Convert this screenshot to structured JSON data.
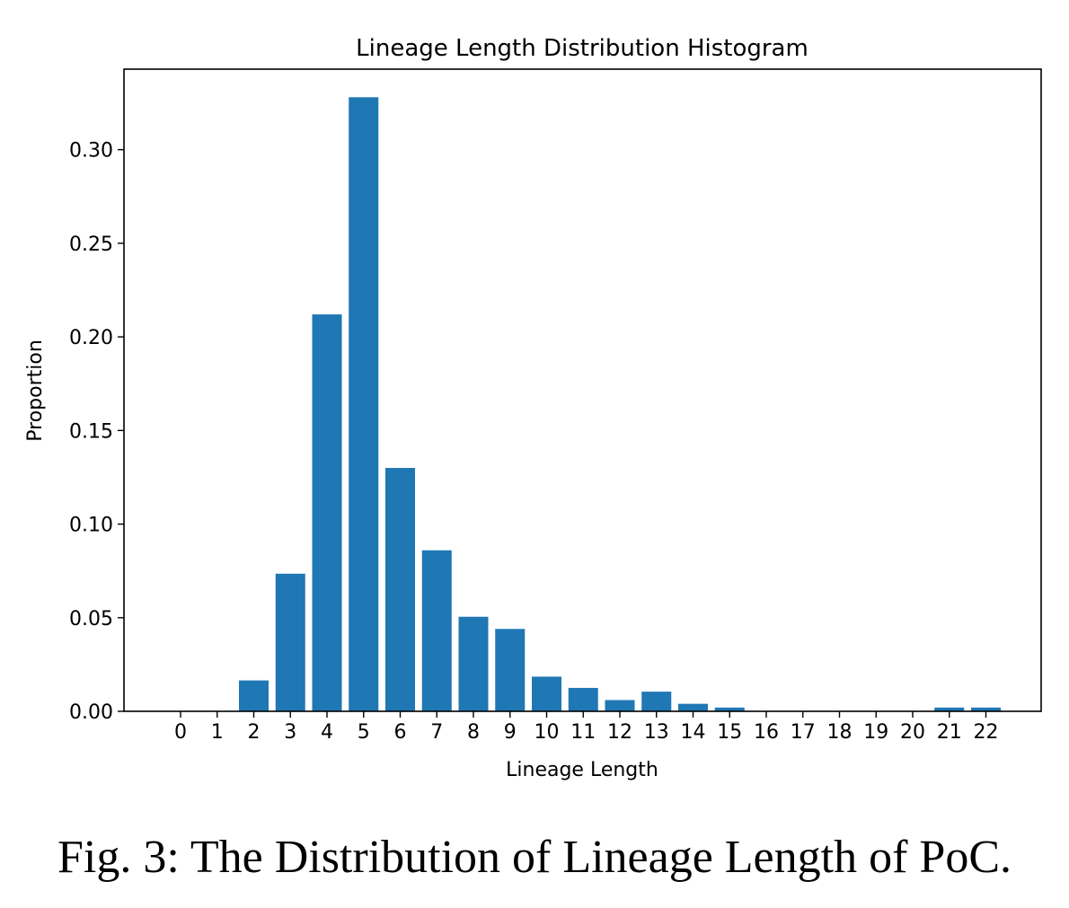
{
  "chart_data": {
    "type": "bar",
    "title": "Lineage Length Distribution Histogram",
    "xlabel": "Lineage Length",
    "ylabel": "Proportion",
    "categories": [
      "0",
      "1",
      "2",
      "3",
      "4",
      "5",
      "6",
      "7",
      "8",
      "9",
      "10",
      "11",
      "12",
      "13",
      "14",
      "15",
      "16",
      "17",
      "18",
      "19",
      "20",
      "21",
      "22"
    ],
    "values": [
      0,
      0,
      0.0165,
      0.0735,
      0.212,
      0.328,
      0.13,
      0.086,
      0.0505,
      0.044,
      0.0185,
      0.0125,
      0.006,
      0.0105,
      0.004,
      0.002,
      0,
      0,
      0,
      0,
      0,
      0.002,
      0.002
    ],
    "ylim": [
      0,
      0.343
    ],
    "yticks": [
      "0.00",
      "0.05",
      "0.10",
      "0.15",
      "0.20",
      "0.25",
      "0.30"
    ],
    "bar_color": "#1f77b4",
    "grid": false,
    "legend": "none"
  },
  "caption": "Fig. 3: The Distribution of Lineage Length of PoC."
}
